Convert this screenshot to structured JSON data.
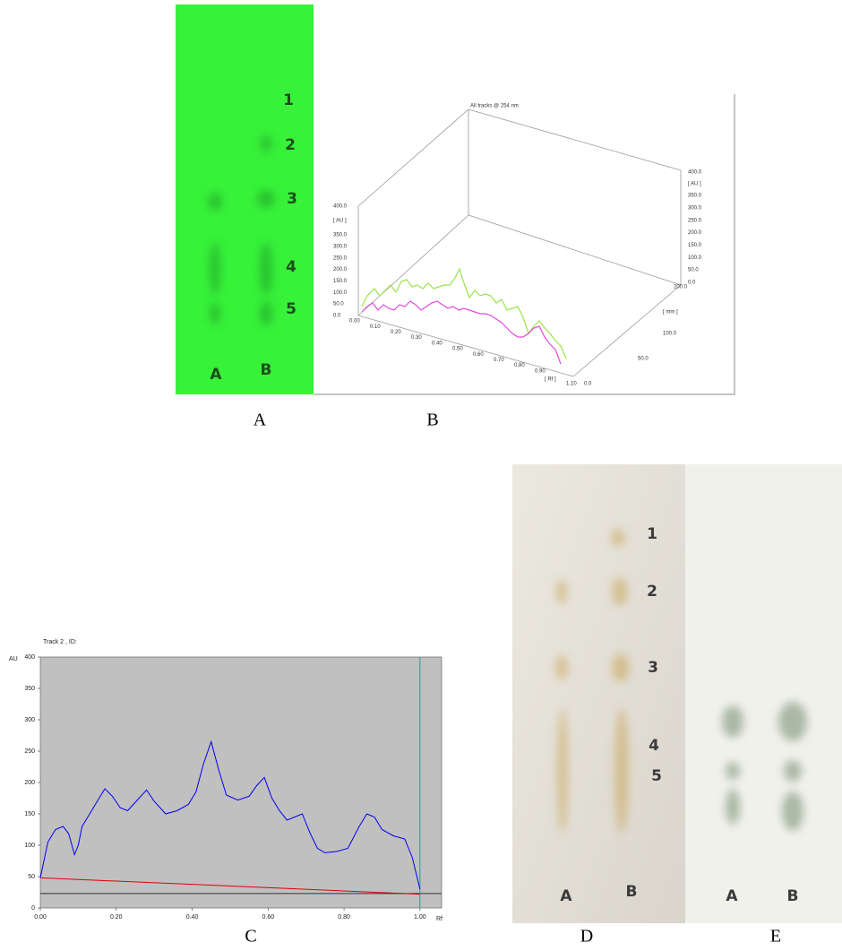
{
  "panel_a": {
    "bands": [
      "1",
      "2",
      "3",
      "4",
      "5"
    ],
    "lanes": [
      "A",
      "B"
    ]
  },
  "panel_b": {
    "title": "All tracks @ 254 nm",
    "au_label": "[ AU ]",
    "left_ticks": [
      "400.0",
      "350.0",
      "300.0",
      "250.0",
      "200.0",
      "150.0",
      "100.0",
      "50.0",
      "0.0"
    ],
    "right_ticks": [
      "400.0",
      "350.0",
      "300.0",
      "250.0",
      "200.0",
      "150.0",
      "100.0",
      "50.0",
      "0.0"
    ],
    "rf_ticks": [
      "0.00",
      "0.10",
      "0.20",
      "0.30",
      "0.40",
      "0.50",
      "0.60",
      "0.70",
      "0.80",
      "0.90"
    ],
    "rf_last": "1.10",
    "rf_label": "[ Rf ]",
    "mm_label": "[ mm ]",
    "mm_ticks": [
      "200.0",
      "100.0",
      "50.0",
      "0.0"
    ]
  },
  "panel_d": {
    "bands": [
      "1",
      "2",
      "3",
      "4",
      "5"
    ],
    "lanes": [
      "A",
      "B"
    ]
  },
  "panel_e": {
    "lanes": [
      "A",
      "B"
    ]
  },
  "captions": [
    "A",
    "B",
    "C",
    "D",
    "E"
  ],
  "chart_data": {
    "type": "line",
    "title": "Track 2 , ID:",
    "y_label": "AU",
    "x_label": "Rf",
    "x": [
      0,
      0.02,
      0.04,
      0.06,
      0.075,
      0.09,
      0.1,
      0.11,
      0.13,
      0.15,
      0.17,
      0.19,
      0.21,
      0.23,
      0.26,
      0.28,
      0.3,
      0.33,
      0.36,
      0.39,
      0.41,
      0.43,
      0.45,
      0.47,
      0.49,
      0.52,
      0.55,
      0.57,
      0.59,
      0.61,
      0.63,
      0.65,
      0.67,
      0.69,
      0.71,
      0.73,
      0.75,
      0.78,
      0.81,
      0.84,
      0.86,
      0.88,
      0.9,
      0.93,
      0.96,
      0.98,
      1.0
    ],
    "series": [
      {
        "color": "#0000ee",
        "values": [
          48,
          105,
          125,
          130,
          118,
          85,
          100,
          130,
          150,
          170,
          190,
          178,
          160,
          155,
          175,
          188,
          170,
          150,
          155,
          165,
          185,
          230,
          265,
          220,
          180,
          172,
          178,
          195,
          208,
          175,
          155,
          140,
          145,
          150,
          120,
          95,
          88,
          90,
          95,
          130,
          150,
          145,
          125,
          115,
          110,
          80,
          30
        ]
      }
    ],
    "baseline": {
      "color": "#e00000",
      "x": [
        0,
        1.0
      ],
      "values": [
        48,
        22
      ]
    },
    "floor_line": {
      "color": "#303030",
      "value": 23
    },
    "end_marker": {
      "color": "#2a9d8f",
      "x": 1.0
    },
    "plot_color": "#c0c0c0",
    "xlim": [
      0,
      1.057
    ],
    "ylim": [
      0,
      400
    ],
    "xticks": [
      {
        "value": 0,
        "label": "0.00"
      },
      {
        "value": 0.2,
        "label": "0.20"
      },
      {
        "value": 0.4,
        "label": "0.40"
      },
      {
        "value": 0.6,
        "label": "0.60"
      },
      {
        "value": 0.8,
        "label": "0.80"
      },
      {
        "value": 1.0,
        "label": "1.00"
      }
    ],
    "yticks": [
      0,
      50,
      100,
      150,
      200,
      250,
      300,
      350,
      400
    ]
  }
}
